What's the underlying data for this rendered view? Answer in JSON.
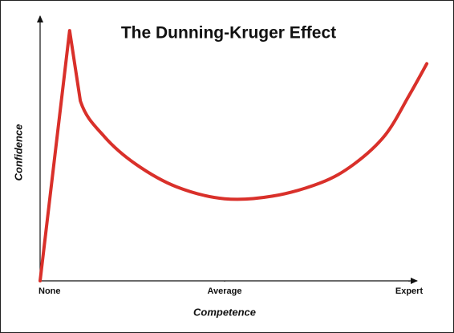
{
  "chart_data": {
    "type": "line",
    "title": "The Dunning-Kruger Effect",
    "x_label": "Competence",
    "y_label": "Confidence",
    "x": [
      0,
      8,
      10.9,
      17.4,
      26,
      37,
      50,
      63,
      76,
      85,
      93.5,
      100,
      104.8
    ],
    "series": [
      {
        "color": "#d9302a",
        "values": [
          0,
          94.5,
          68,
          54.5,
          44,
          35.5,
          31,
          32,
          37,
          44,
          55,
          70,
          82
        ]
      }
    ],
    "xlim": [
      0,
      105
    ],
    "ylim": [
      0,
      100
    ],
    "xticks": [
      {
        "value": 0,
        "label": "None"
      },
      {
        "value": 50,
        "label": "Average"
      },
      {
        "value": 100,
        "label": "Expert"
      }
    ]
  }
}
